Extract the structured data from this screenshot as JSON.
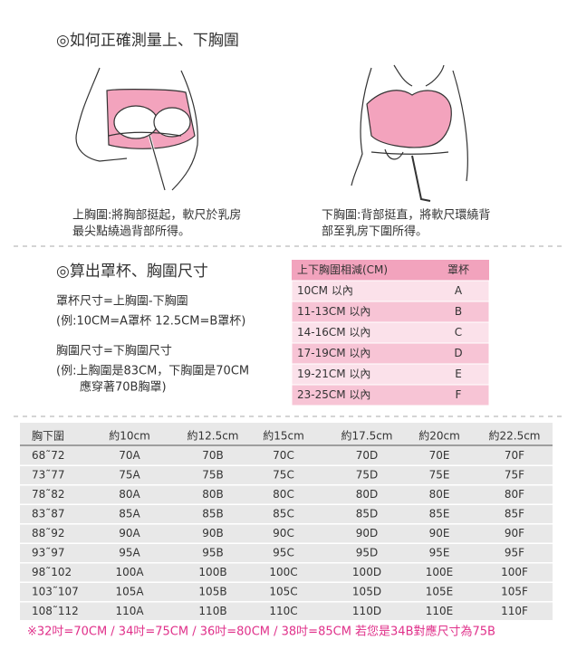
{
  "section1": {
    "title": "◎如何正確測量上、下胸圍",
    "left_caption": [
      "上胸圍:將胸部挺起，軟尺於乳房",
      "最尖點繞過背部所得。"
    ],
    "right_caption": [
      "下胸圍:背部挺直，將軟尺環繞背",
      "部至乳房下圍所得。"
    ]
  },
  "section2": {
    "title": "◎算出罩杯、胸圍尺寸",
    "notes": [
      "罩杯尺寸=上胸圍-下胸圍",
      "(例:10CM=A罩杯 12.5CM=B罩杯)",
      "胸圍尺寸=下胸圍尺寸",
      "(例:上胸圍是83CM，下胸圍是70CM",
      "應穿著70B胸罩)"
    ]
  },
  "cup_table": {
    "header": [
      "上下胸圍相減(CM)",
      "罩杯"
    ],
    "rows": [
      [
        "10CM 以內",
        "A"
      ],
      [
        "11-13CM 以內",
        "B"
      ],
      [
        "14-16CM 以內",
        "C"
      ],
      [
        "17-19CM 以內",
        "D"
      ],
      [
        "19-21CM 以內",
        "E"
      ],
      [
        "23-25CM 以內",
        "F"
      ]
    ]
  },
  "size_table": {
    "header": [
      "胸下圍",
      "約10cm",
      "約12.5cm",
      "約15cm",
      "約17.5cm",
      "約20cm",
      "約22.5cm"
    ],
    "rows": [
      [
        "68˜72",
        "70A",
        "70B",
        "70C",
        "70D",
        "70E",
        "70F"
      ],
      [
        "73˜77",
        "75A",
        "75B",
        "75C",
        "75D",
        "75E",
        "75F"
      ],
      [
        "78˜82",
        "80A",
        "80B",
        "80C",
        "80D",
        "80E",
        "80F"
      ],
      [
        "83˜87",
        "85A",
        "85B",
        "85C",
        "85D",
        "85E",
        "85F"
      ],
      [
        "88˜92",
        "90A",
        "90B",
        "90C",
        "90D",
        "90E",
        "90F"
      ],
      [
        "93˜97",
        "95A",
        "95B",
        "95C",
        "95D",
        "95E",
        "95F"
      ],
      [
        "98˜102",
        "100A",
        "100B",
        "100C",
        "100D",
        "100E",
        "100F"
      ],
      [
        "103˜107",
        "105A",
        "105B",
        "105C",
        "105D",
        "105E",
        "105F"
      ],
      [
        "108˜112",
        "110A",
        "110B",
        "110C",
        "110D",
        "110E",
        "110F"
      ]
    ]
  },
  "footnote": "※32吋=70CM / 34吋=75CM / 36吋=80CM / 38吋=85CM 若您是34B對應尺寸為75B"
}
